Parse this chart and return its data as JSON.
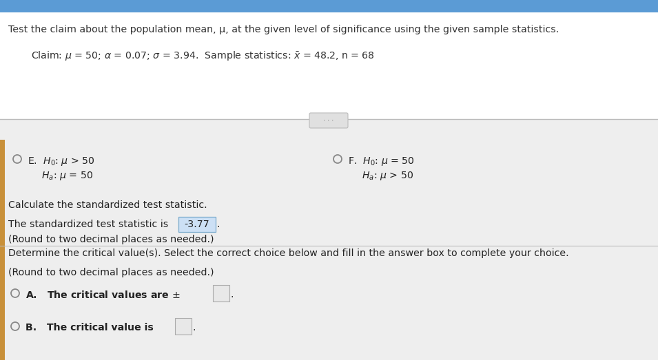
{
  "title": "Test the claim about the population mean, μ, at the given level of significance using the given sample statistics.",
  "claim_line": "Claim: μ = 50; α = 0.07; σ = 3.94.  Sample statistics: x̅ = 48.2, n = 68",
  "option_E_H0": "E.  H₀: μ > 50",
  "option_E_Ha": "Hₐ: μ = 50",
  "option_F_H0": "F.  H₀: μ = 50",
  "option_F_Ha": "Hₐ: μ > 50",
  "calc_header": "Calculate the standardized test statistic.",
  "stat_line1": "The standardized test statistic is",
  "stat_value": "-3.77",
  "stat_line2": "(Round to two decimal places as needed.)",
  "det_line": "Determine the critical value(s). Select the correct choice below and fill in the answer box to complete your choice.",
  "round_line": "(Round to two decimal places as needed.)",
  "choice_A_label": "A.",
  "choice_A_text": "The critical values are ±",
  "choice_B_label": "B.",
  "choice_B_text": "The critical value is",
  "bg_top": "#ffffff",
  "bg_bottom": "#eeeeee",
  "text_color": "#333333",
  "text_color_dark": "#222222",
  "highlight_bg": "#cce0f5",
  "highlight_border": "#7aaacc",
  "empty_box_bg": "#e8e8e8",
  "empty_box_border": "#aaaaaa",
  "sidebar_color": "#c8903a",
  "divider_color": "#bbbbbb",
  "ellipsis_bg": "#e0e0e0",
  "ellipsis_border": "#bbbbbb",
  "radio_color": "#888888",
  "top_bar_color": "#5b9bd5"
}
